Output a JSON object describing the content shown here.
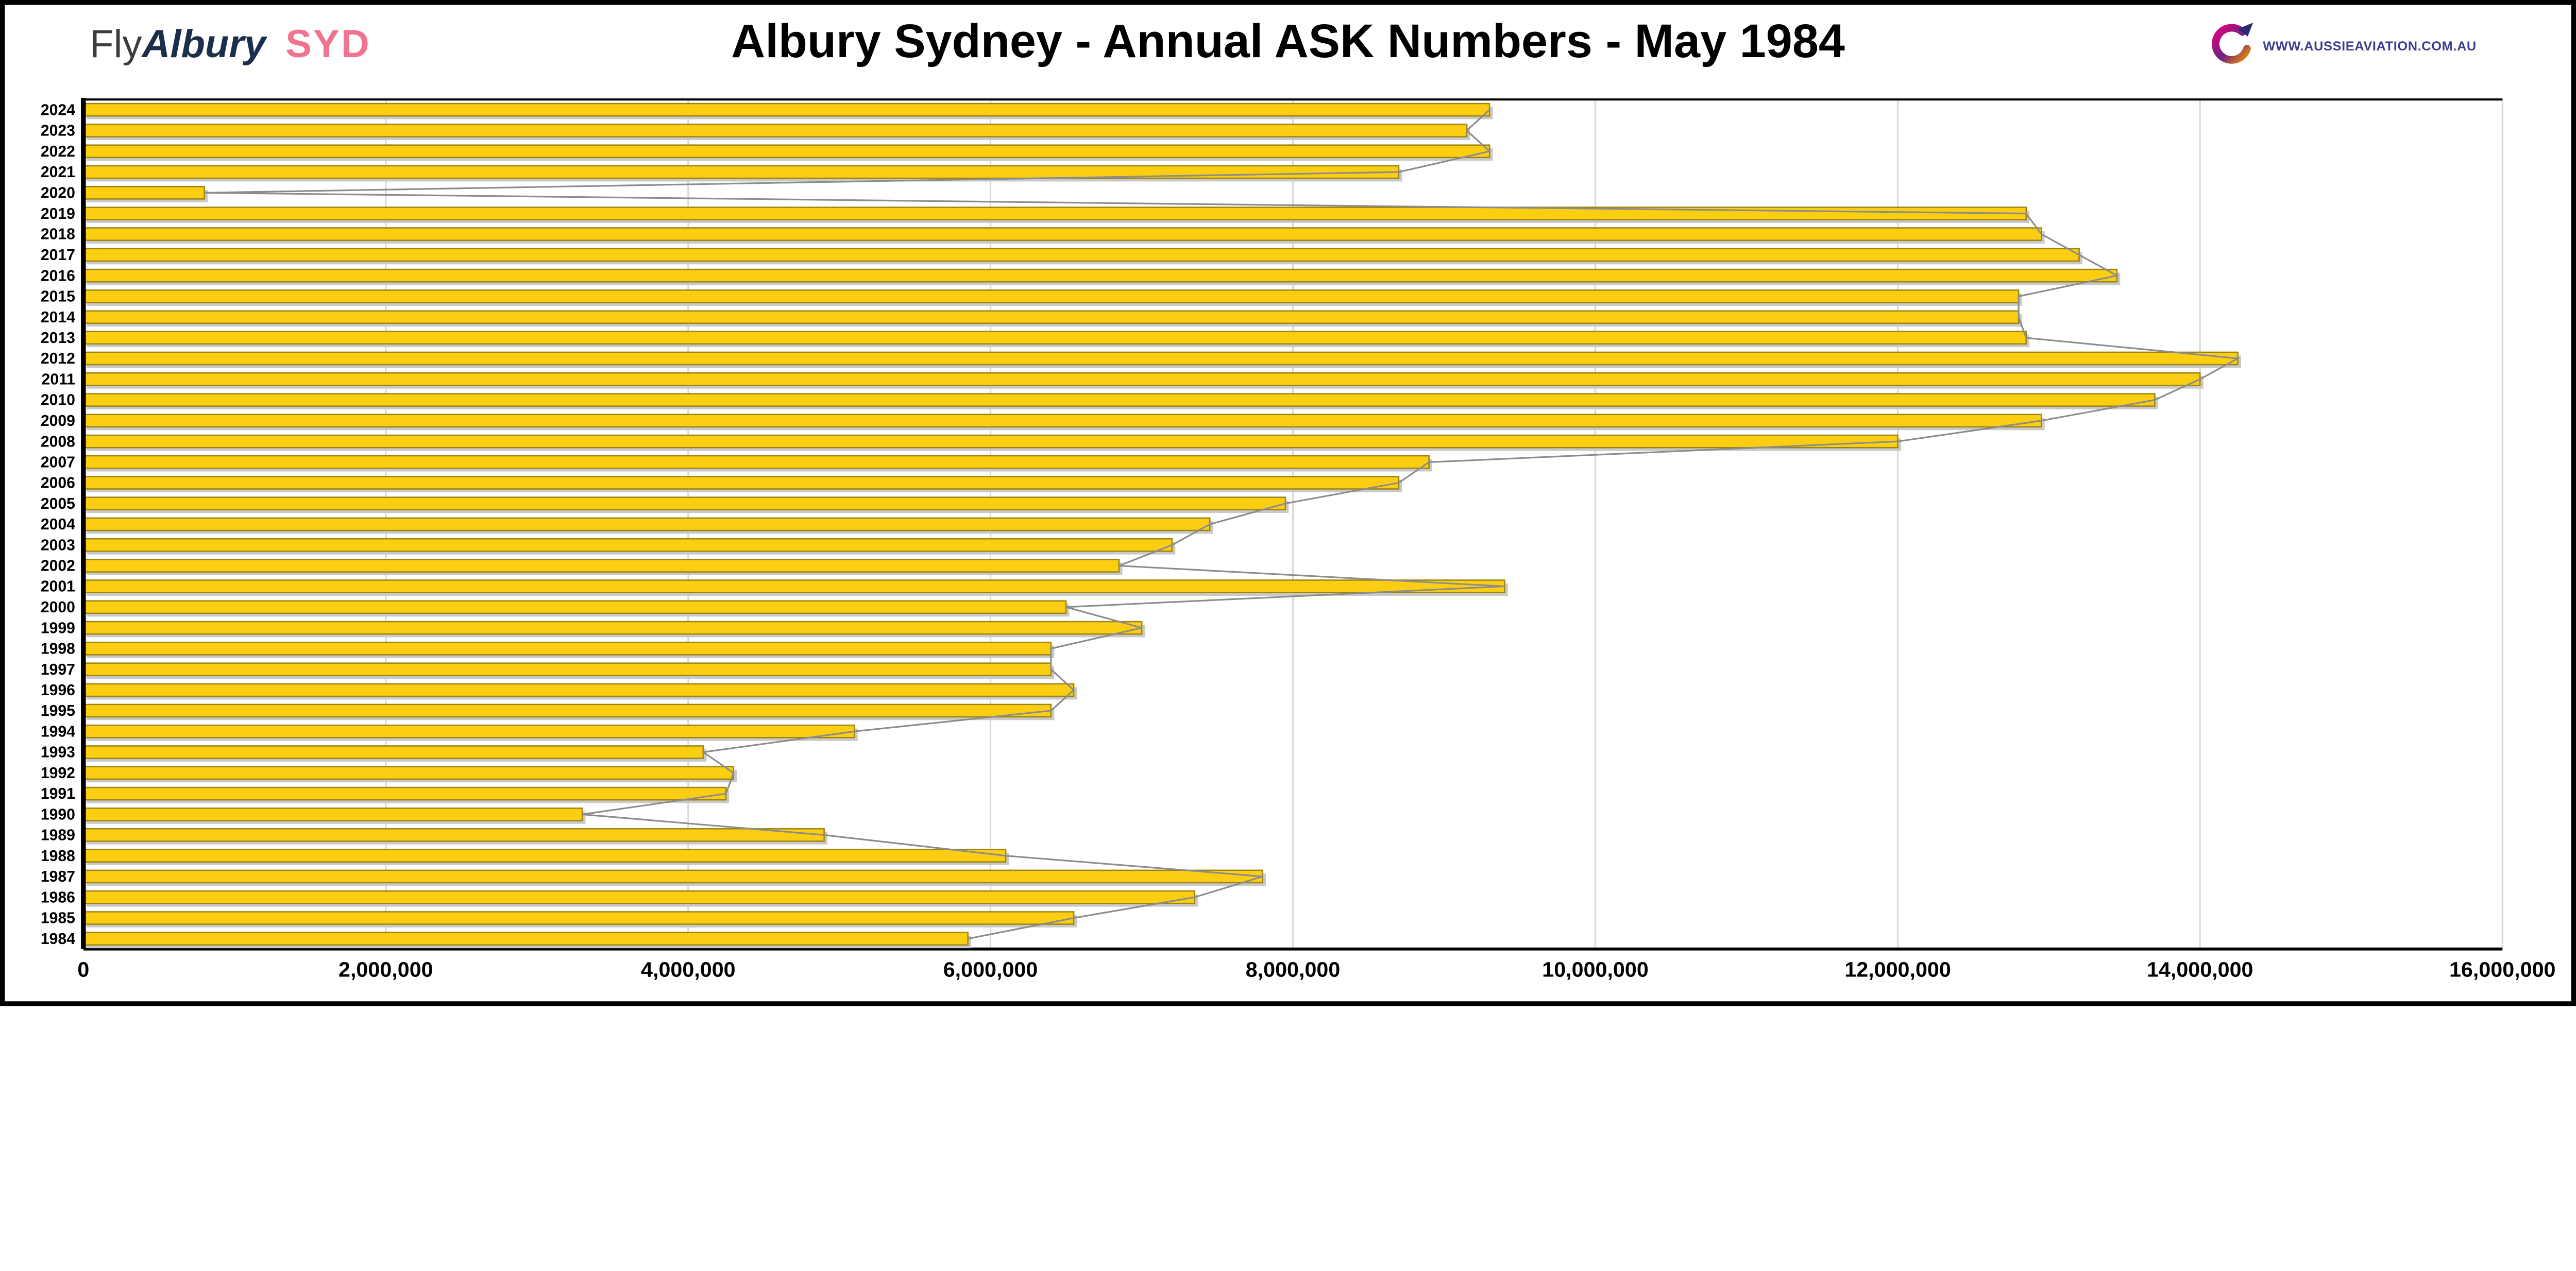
{
  "header": {
    "brand_fly": "Fly",
    "brand_albury": "Albury",
    "brand_syd": "SYD",
    "title": "Albury Sydney - Annual ASK Numbers - May 1984",
    "logo_text": "WWW.AUSSIEAVIATION.COM.AU"
  },
  "colors": {
    "brand_fly": "#3c3c3c",
    "brand_albury": "#1b2f4b",
    "brand_syd": "#f2738f",
    "logo_text": "#3d3c8f",
    "bar_fill": "#fcce12",
    "bar_border": "#9c8412",
    "bar_shadow": "#c9c9c9",
    "envelope_line": "#8c8c8c",
    "gridline": "#d9d9d9",
    "axis": "#000000"
  },
  "chart_data": {
    "type": "bar",
    "orientation": "horizontal",
    "title": "Albury Sydney - Annual ASK Numbers - May 1984",
    "xlabel": "",
    "ylabel": "",
    "grid": true,
    "legend": false,
    "xlim": [
      0,
      16000000
    ],
    "x_tick_interval": 2000000,
    "x_tick_labels": [
      "0",
      "2,000,000",
      "4,000,000",
      "6,000,000",
      "8,000,000",
      "10,000,000",
      "12,000,000",
      "14,000,000",
      "16,000,000"
    ],
    "categories": [
      "2024",
      "2023",
      "2022",
      "2021",
      "2020",
      "2019",
      "2018",
      "2017",
      "2016",
      "2015",
      "2014",
      "2013",
      "2012",
      "2011",
      "2010",
      "2009",
      "2008",
      "2007",
      "2006",
      "2005",
      "2004",
      "2003",
      "2002",
      "2001",
      "2000",
      "1999",
      "1998",
      "1997",
      "1996",
      "1995",
      "1994",
      "1993",
      "1992",
      "1991",
      "1990",
      "1989",
      "1988",
      "1987",
      "1986",
      "1985",
      "1984"
    ],
    "values": [
      9300000,
      9150000,
      9300000,
      8700000,
      800000,
      12850000,
      12950000,
      13200000,
      13450000,
      12800000,
      12800000,
      12850000,
      14250000,
      14000000,
      13700000,
      12950000,
      12000000,
      8900000,
      8700000,
      7950000,
      7450000,
      7200000,
      6850000,
      9400000,
      6500000,
      7000000,
      6400000,
      6400000,
      6550000,
      6400000,
      5100000,
      4100000,
      4300000,
      4250000,
      3300000,
      4900000,
      6100000,
      7800000,
      7350000,
      6550000,
      5850000
    ]
  }
}
